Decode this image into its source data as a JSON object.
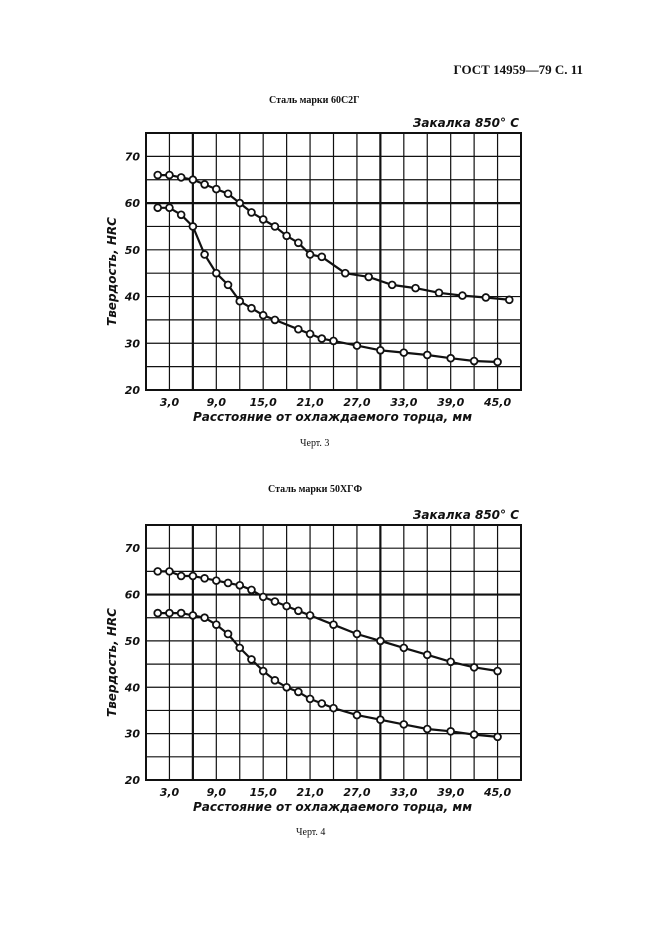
{
  "page": {
    "header": "ГОСТ 14959—79 С.  11"
  },
  "chart_data": [
    {
      "type": "line",
      "title": "Сталь марки 60С2Г",
      "subtitle": "Закалка 850° С",
      "caption": "Черт. 3",
      "xlabel": "Расстояние от охлаждаемого торца, мм",
      "ylabel": "Твердость, HRC",
      "xlim": [
        0,
        48
      ],
      "ylim": [
        20,
        75
      ],
      "xticks": [
        3.0,
        9.0,
        15.0,
        21.0,
        27.0,
        33.0,
        39.0,
        45.0
      ],
      "xtick_labels": [
        "3,0",
        "9,0",
        "15,0",
        "21,0",
        "27,0",
        "33,0",
        "39,0",
        "45,0"
      ],
      "yticks": [
        20,
        30,
        40,
        50,
        60,
        70
      ],
      "ytick_labels": [
        "20",
        "30",
        "40",
        "50",
        "60",
        "70"
      ],
      "series": [
        {
          "name": "upper",
          "x": [
            1.5,
            3.0,
            4.5,
            6.0,
            7.5,
            9.0,
            10.5,
            12.0,
            13.5,
            15.0,
            16.5,
            18.0,
            19.5,
            21.0,
            22.5,
            25.5,
            28.5,
            31.5,
            34.5,
            37.5,
            40.5,
            43.5,
            46.5
          ],
          "y": [
            66,
            66,
            65.5,
            65,
            64,
            63,
            62,
            60,
            58,
            56.5,
            55,
            53,
            51.5,
            49,
            48.5,
            45,
            44.2,
            42.5,
            41.8,
            40.8,
            40.2,
            39.8,
            39.3
          ]
        },
        {
          "name": "lower",
          "x": [
            1.5,
            3.0,
            4.5,
            6.0,
            7.5,
            9.0,
            10.5,
            12.0,
            13.5,
            15.0,
            16.5,
            19.5,
            21.0,
            22.5,
            24.0,
            27.0,
            30.0,
            33.0,
            36.0,
            39.0,
            42.0,
            45.0
          ],
          "y": [
            59,
            59,
            57.5,
            55,
            49,
            45,
            42.5,
            39,
            37.5,
            36,
            35,
            33,
            32,
            31,
            30.5,
            29.5,
            28.5,
            28,
            27.5,
            26.8,
            26.2,
            26
          ]
        }
      ]
    },
    {
      "type": "line",
      "title": "Сталь марки 50ХГФ",
      "subtitle": "Закалка 850° С",
      "caption": "Черт. 4",
      "xlabel": "Расстояние от охлаждаемого торца, мм",
      "ylabel": "Твердость, HRC",
      "xlim": [
        0,
        48
      ],
      "ylim": [
        20,
        75
      ],
      "xticks": [
        3.0,
        9.0,
        15.0,
        21.0,
        27.0,
        33.0,
        39.0,
        45.0
      ],
      "xtick_labels": [
        "3,0",
        "9,0",
        "15,0",
        "21,0",
        "27,0",
        "33,0",
        "39,0",
        "45,0"
      ],
      "yticks": [
        20,
        30,
        40,
        50,
        60,
        70
      ],
      "ytick_labels": [
        "20",
        "30",
        "40",
        "50",
        "60",
        "70"
      ],
      "series": [
        {
          "name": "upper",
          "x": [
            1.5,
            3.0,
            4.5,
            6.0,
            7.5,
            9.0,
            10.5,
            12.0,
            13.5,
            15.0,
            16.5,
            18.0,
            19.5,
            21.0,
            24.0,
            27.0,
            30.0,
            33.0,
            36.0,
            39.0,
            42.0,
            45.0
          ],
          "y": [
            65,
            65,
            64,
            64,
            63.5,
            63,
            62.5,
            62,
            61,
            59.5,
            58.5,
            57.5,
            56.5,
            55.5,
            53.5,
            51.5,
            50,
            48.5,
            47,
            45.5,
            44.3,
            43.5
          ]
        },
        {
          "name": "lower",
          "x": [
            1.5,
            3.0,
            4.5,
            6.0,
            7.5,
            9.0,
            10.5,
            12.0,
            13.5,
            15.0,
            16.5,
            18.0,
            19.5,
            21.0,
            22.5,
            24.0,
            27.0,
            30.0,
            33.0,
            36.0,
            39.0,
            42.0,
            45.0
          ],
          "y": [
            56,
            56,
            56,
            55.5,
            55,
            53.5,
            51.5,
            48.5,
            46,
            43.5,
            41.5,
            40,
            39,
            37.5,
            36.5,
            35.5,
            34,
            33,
            32,
            31,
            30.5,
            29.8,
            29.3
          ]
        }
      ]
    }
  ]
}
